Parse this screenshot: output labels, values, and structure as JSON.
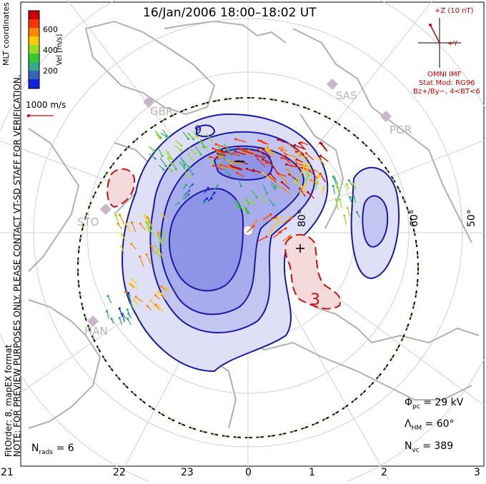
{
  "title": "16/Jan/2006 18:00–18:02 UT",
  "note_line1": "NOTE: FOR PREVIEW PURPOSES ONLY. PLEASE CONTACT VT-SD STAFF FOR VERIFICATION.",
  "note_line2": "FitOrder: 8, mapEX format",
  "coord_label": "MLT coordinates",
  "colorbar": {
    "label": "Vel [m/s]",
    "ticks": [
      "600",
      "400",
      "200"
    ],
    "colors": [
      "#cc0000",
      "#ff3300",
      "#ff8800",
      "#ffcc00",
      "#99dd22",
      "#33cc33",
      "#33aa88",
      "#3366bb",
      "#1122dd"
    ]
  },
  "reference_vector": "1000 m/s",
  "imf": {
    "scale": "+Z (10 nT)",
    "y_label": "+Y",
    "source": "OMNI IMF",
    "model": "Stat Mod: RG96",
    "conditions": "Bz+/By−, 4<BT<6"
  },
  "stations": [
    "GBR",
    "SAS",
    "PGR",
    "STO",
    "HAN"
  ],
  "latitude_labels": [
    "80°",
    "60°",
    "50°"
  ],
  "contour_labels": {
    "min_sign": "−",
    "max_sign": "+",
    "min_value": "9",
    "max_value": "3"
  },
  "stats": {
    "phi_pc": "= 29 kV",
    "lambda_hm": "= 60°",
    "n_vc": "= 389",
    "n_rads": "= 6"
  },
  "mlt_ticks": [
    "21",
    "22",
    "23",
    "0",
    "1",
    "2",
    "3"
  ],
  "colors": {
    "negative_fill": "#7f86e0",
    "positive_fill": "#e9b6b6",
    "negative_contour": "#1a1aa8",
    "positive_contour": "#cc1111",
    "land": "#b0b0b0"
  }
}
